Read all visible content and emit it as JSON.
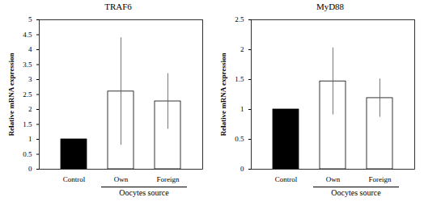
{
  "chart_data": [
    {
      "type": "bar",
      "title": "TRAF6",
      "ylabel": "Relative mRNA expression",
      "categories": [
        "Control",
        "Own",
        "Foreign"
      ],
      "values": [
        1,
        2.6,
        2.27
      ],
      "errors": [
        null,
        1.8,
        0.93
      ],
      "colors": [
        "#000000",
        "#ffffff",
        "#ffffff"
      ],
      "ylim": [
        0,
        5
      ],
      "yticks": [
        0,
        0.5,
        1,
        1.5,
        2,
        2.5,
        3,
        3.5,
        4,
        4.5,
        5
      ],
      "annotation": {
        "text": "Oocytes source",
        "categories": [
          "Own",
          "Foreign"
        ]
      }
    },
    {
      "type": "bar",
      "title": "MyD88",
      "ylabel": "Relative mRNA expression",
      "categories": [
        "Control",
        "Own",
        "Foreign"
      ],
      "values": [
        1,
        1.47,
        1.19
      ],
      "errors": [
        null,
        0.56,
        0.32
      ],
      "colors": [
        "#000000",
        "#ffffff",
        "#ffffff"
      ],
      "ylim": [
        0,
        2.5
      ],
      "yticks": [
        0,
        0.5,
        1,
        1.5,
        2,
        2.5
      ],
      "annotation": {
        "text": "Oocytes source",
        "categories": [
          "Own",
          "Foreign"
        ]
      }
    }
  ]
}
